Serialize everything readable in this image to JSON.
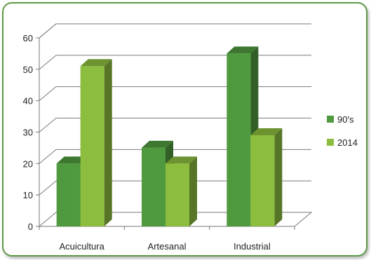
{
  "chart_data": {
    "type": "bar",
    "categories": [
      "Acuicultura",
      "Artesanal",
      "Industrial"
    ],
    "series": [
      {
        "name": "90's",
        "values": [
          20,
          25,
          55
        ],
        "color": "#4f9a3e"
      },
      {
        "name": "2014",
        "values": [
          51,
          20,
          29
        ],
        "color": "#8cbd3f"
      }
    ],
    "y_ticks": [
      "0",
      "10",
      "20",
      "30",
      "40",
      "50",
      "60"
    ],
    "ylim": [
      0,
      60
    ],
    "grid": true,
    "legend_position": "right",
    "style": "3d-clustered-column"
  }
}
